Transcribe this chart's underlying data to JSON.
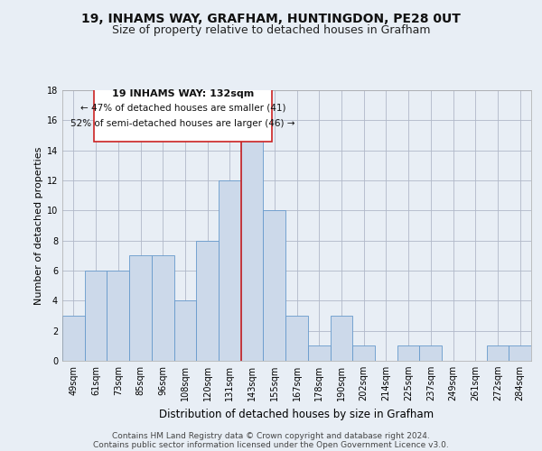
{
  "title": "19, INHAMS WAY, GRAFHAM, HUNTINGDON, PE28 0UT",
  "subtitle": "Size of property relative to detached houses in Grafham",
  "xlabel": "Distribution of detached houses by size in Grafham",
  "ylabel": "Number of detached properties",
  "categories": [
    "49sqm",
    "61sqm",
    "73sqm",
    "85sqm",
    "96sqm",
    "108sqm",
    "120sqm",
    "131sqm",
    "143sqm",
    "155sqm",
    "167sqm",
    "178sqm",
    "190sqm",
    "202sqm",
    "214sqm",
    "225sqm",
    "237sqm",
    "249sqm",
    "261sqm",
    "272sqm",
    "284sqm"
  ],
  "values": [
    3,
    6,
    6,
    7,
    7,
    4,
    8,
    12,
    15,
    10,
    3,
    1,
    3,
    1,
    0,
    1,
    1,
    0,
    0,
    1,
    1
  ],
  "bar_color": "#ccd9ea",
  "bar_edge_color": "#6699cc",
  "red_line_index": 7,
  "red_line_color": "#cc2222",
  "ylim": [
    0,
    18
  ],
  "yticks": [
    0,
    2,
    4,
    6,
    8,
    10,
    12,
    14,
    16,
    18
  ],
  "annotation_title": "19 INHAMS WAY: 132sqm",
  "annotation_line1": "← 47% of detached houses are smaller (41)",
  "annotation_line2": "52% of semi-detached houses are larger (46) →",
  "annotation_box_color": "#ffffff",
  "annotation_box_edge_color": "#cc2222",
  "footer_line1": "Contains HM Land Registry data © Crown copyright and database right 2024.",
  "footer_line2": "Contains public sector information licensed under the Open Government Licence v3.0.",
  "bg_color": "#e8eef5",
  "plot_bg_color": "#e8eef5",
  "grid_color": "#b0b8c8",
  "title_fontsize": 10,
  "subtitle_fontsize": 9,
  "xlabel_fontsize": 8.5,
  "ylabel_fontsize": 8,
  "tick_fontsize": 7,
  "footer_fontsize": 6.5,
  "ann_title_fontsize": 8,
  "ann_text_fontsize": 7.5
}
